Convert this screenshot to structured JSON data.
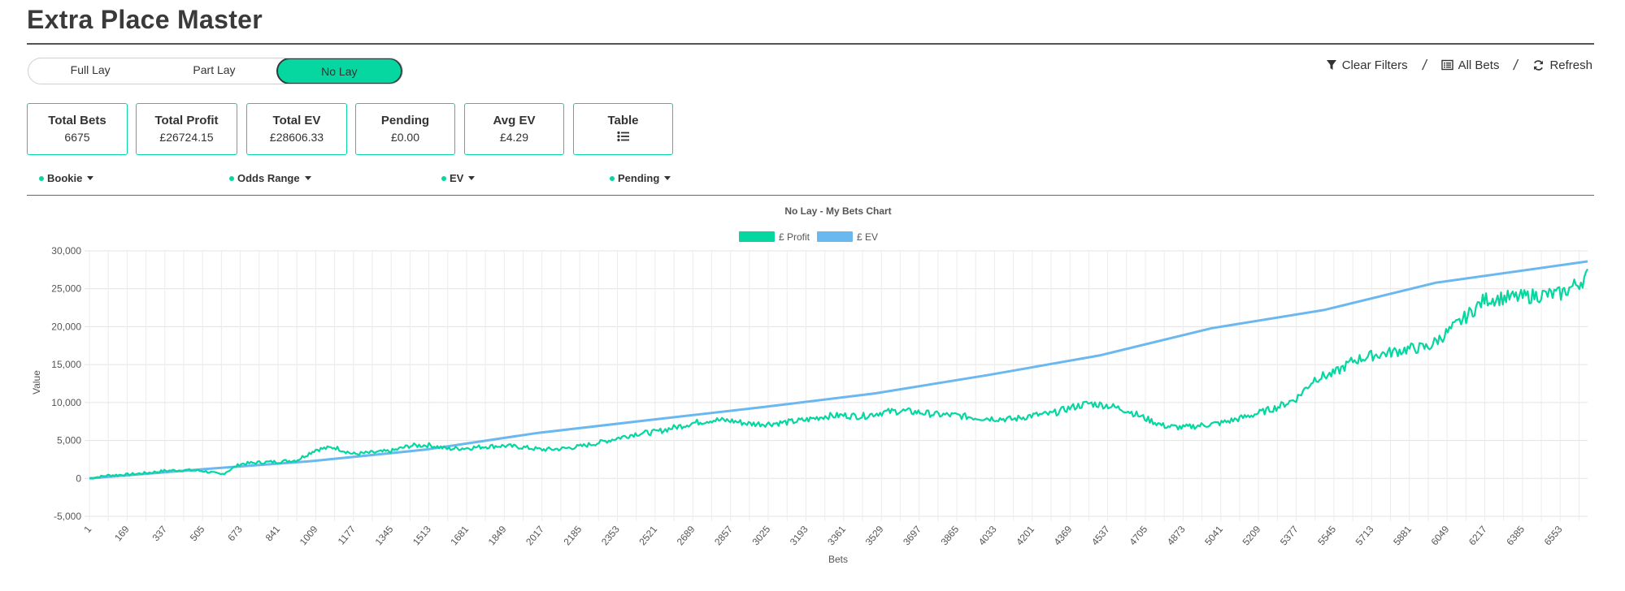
{
  "page": {
    "title": "Extra Place Master"
  },
  "mode_toggle": {
    "options": [
      "Full Lay",
      "Part Lay",
      "No Lay"
    ],
    "active": "No Lay"
  },
  "toolbar": {
    "clear_filters": "Clear Filters",
    "all_bets": "All Bets",
    "refresh": "Refresh"
  },
  "stats": [
    {
      "label": "Total Bets",
      "value": "6675"
    },
    {
      "label": "Total Profit",
      "value": "£26724.15"
    },
    {
      "label": "Total EV",
      "value": "£28606.33"
    },
    {
      "label": "Pending",
      "value": "£0.00"
    },
    {
      "label": "Avg EV",
      "value": "£4.29"
    },
    {
      "label": "Table",
      "icon": "list-icon"
    }
  ],
  "filters": [
    "Bookie",
    "Odds Range",
    "EV",
    "Pending"
  ],
  "colors": {
    "accent": "#06d6a0",
    "profit": "#06d6a0",
    "ev": "#6ab8ef"
  },
  "chart_data": {
    "type": "line",
    "title": "No Lay - My Bets Chart",
    "xlabel": "Bets",
    "ylabel": "Value",
    "ylim": [
      -5000,
      30000
    ],
    "yticks": [
      -5000,
      0,
      5000,
      10000,
      15000,
      20000,
      25000,
      30000
    ],
    "ytick_labels": [
      "-5,000",
      "0",
      "5,000",
      "10,000",
      "15,000",
      "20,000",
      "25,000",
      "30,000"
    ],
    "xlim": [
      1,
      6675
    ],
    "xtick_start": 1,
    "xtick_step": 84,
    "grid": true,
    "legend": "top-center",
    "series": [
      {
        "name": "£ Profit",
        "color": "#06d6a0",
        "x": [
          1,
          85,
          169,
          253,
          337,
          421,
          505,
          589,
          673,
          757,
          841,
          925,
          1009,
          1093,
          1177,
          1261,
          1345,
          1429,
          1513,
          1597,
          1681,
          1765,
          1849,
          1933,
          2017,
          2101,
          2185,
          2269,
          2353,
          2437,
          2521,
          2605,
          2689,
          2773,
          2857,
          2941,
          3025,
          3109,
          3193,
          3277,
          3361,
          3445,
          3529,
          3613,
          3697,
          3781,
          3865,
          3949,
          4033,
          4117,
          4201,
          4285,
          4369,
          4453,
          4537,
          4621,
          4705,
          4789,
          4873,
          4957,
          5041,
          5125,
          5209,
          5293,
          5377,
          5461,
          5545,
          5629,
          5713,
          5797,
          5881,
          5965,
          6049,
          6133,
          6217,
          6301,
          6385,
          6469,
          6553,
          6637,
          6675
        ],
        "y": [
          0,
          400,
          500,
          700,
          1000,
          1100,
          1000,
          500,
          1900,
          2100,
          2200,
          2400,
          3800,
          4100,
          3200,
          3400,
          3600,
          4300,
          4400,
          3900,
          4000,
          4200,
          4300,
          4100,
          3800,
          3900,
          4200,
          4700,
          5300,
          5900,
          6100,
          6700,
          7300,
          7700,
          7600,
          7200,
          7200,
          7400,
          7700,
          8200,
          8300,
          8200,
          8700,
          8900,
          8700,
          8400,
          8300,
          8000,
          7900,
          7800,
          8300,
          8500,
          9300,
          9900,
          9600,
          9000,
          7900,
          6900,
          6700,
          7000,
          7300,
          7900,
          8600,
          9400,
          10500,
          13200,
          13800,
          15500,
          16200,
          16600,
          17100,
          17300,
          19200,
          21300,
          23600,
          23800,
          23900,
          24200,
          24300,
          25800,
          26724
        ]
      },
      {
        "name": "£ EV",
        "color": "#6ab8ef",
        "x": [
          1,
          500,
          1000,
          1500,
          2000,
          2500,
          3000,
          3500,
          4000,
          4500,
          5000,
          5500,
          6000,
          6675
        ],
        "y": [
          0,
          1200,
          2300,
          3800,
          6000,
          7700,
          9400,
          11200,
          13600,
          16200,
          19800,
          22200,
          25800,
          28606
        ]
      }
    ]
  }
}
